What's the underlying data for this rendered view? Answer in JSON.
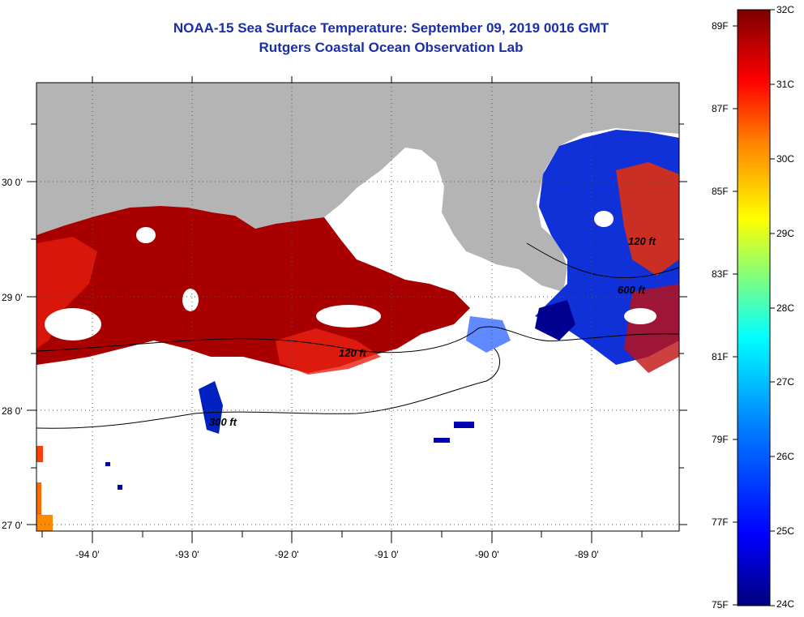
{
  "title": "NOAA-15 Sea Surface Temperature:  September 09, 2019 0016 GMT",
  "subtitle": "Rutgers Coastal Ocean Observation Lab",
  "map": {
    "lon_ticks": [
      "-94 0'",
      "-93 0'",
      "-92 0'",
      "-91 0'",
      "-90 0'",
      "-89 0'"
    ],
    "lat_ticks": [
      "30 0'",
      "29 0'",
      "28 0'",
      "27 0'"
    ],
    "contour_labels": [
      "120 ft",
      "300 ft",
      "600 ft",
      "120 ft"
    ],
    "colors": {
      "land": "#b4b4b4",
      "no_data": "#ffffff"
    }
  },
  "colorbar": {
    "celsius_labels": [
      "32C",
      "31C",
      "30C",
      "29C",
      "28C",
      "27C",
      "26C",
      "25C",
      "24C"
    ],
    "fahrenheit_labels": [
      "89F",
      "87F",
      "85F",
      "83F",
      "81F",
      "79F",
      "77F",
      "75F"
    ],
    "celsius_range": [
      24,
      32
    ],
    "colors": [
      "#00007f",
      "#0000ff",
      "#007fff",
      "#00ffff",
      "#7fff7f",
      "#ffff00",
      "#ff7f00",
      "#ff0000",
      "#7f0000"
    ]
  }
}
